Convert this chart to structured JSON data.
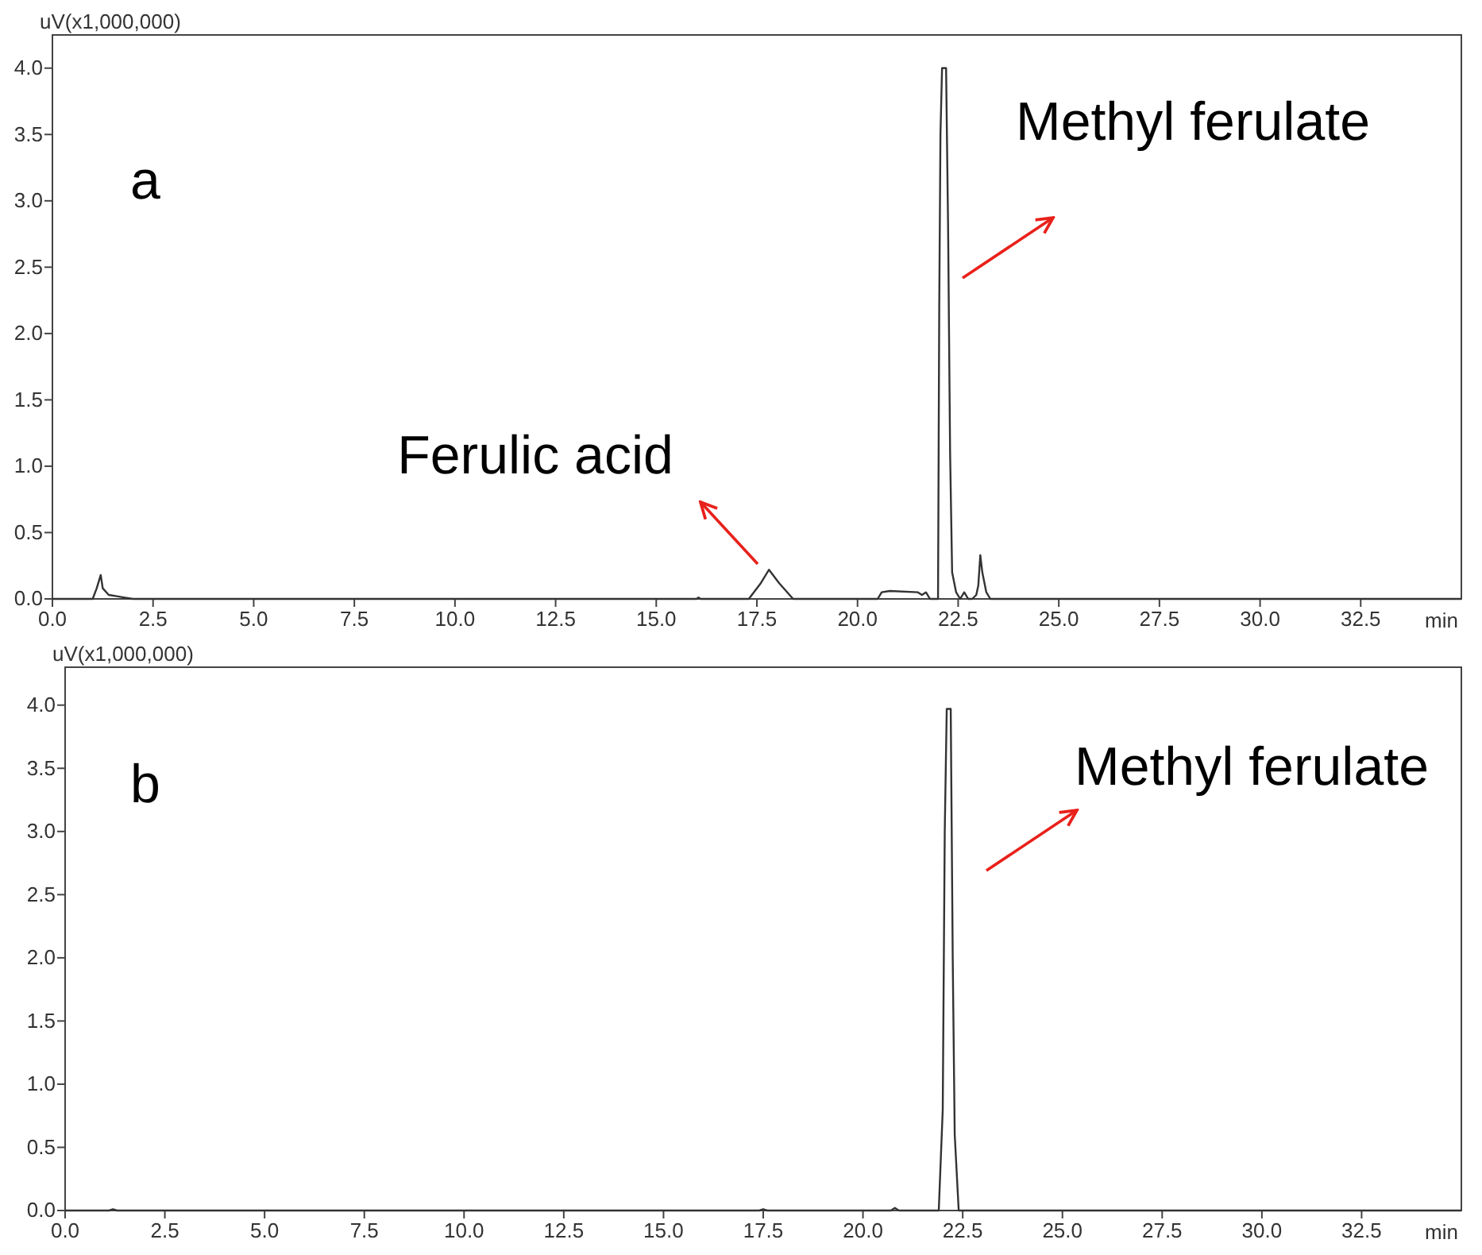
{
  "chart_data": [
    {
      "type": "line",
      "xlabel": "min",
      "ylabel": "uV(x1,000,000)",
      "xlim": [
        0,
        35
      ],
      "ylim": [
        0,
        4.25
      ],
      "xticks": [
        {
          "value": 0,
          "label": "0.0"
        },
        {
          "value": 2.5,
          "label": "2.5"
        },
        {
          "value": 5,
          "label": "5.0"
        },
        {
          "value": 7.5,
          "label": "7.5"
        },
        {
          "value": 10,
          "label": "10.0"
        },
        {
          "value": 12.5,
          "label": "12.5"
        },
        {
          "value": 15,
          "label": "15.0"
        },
        {
          "value": 17.5,
          "label": "17.5"
        },
        {
          "value": 20,
          "label": "20.0"
        },
        {
          "value": 22.5,
          "label": "22.5"
        },
        {
          "value": 25,
          "label": "25.0"
        },
        {
          "value": 27.5,
          "label": "27.5"
        },
        {
          "value": 30,
          "label": "30.0"
        },
        {
          "value": 32.5,
          "label": "32.5"
        }
      ],
      "yticks": [
        {
          "value": 0,
          "label": "0.0"
        },
        {
          "value": 0.5,
          "label": "0.5"
        },
        {
          "value": 1,
          "label": "1.0"
        },
        {
          "value": 1.5,
          "label": "1.5"
        },
        {
          "value": 2,
          "label": "2.0"
        },
        {
          "value": 2.5,
          "label": "2.5"
        },
        {
          "value": 3,
          "label": "3.0"
        },
        {
          "value": 3.5,
          "label": "3.5"
        },
        {
          "value": 4,
          "label": "4.0"
        }
      ],
      "series": [
        {
          "color": "#333333",
          "x": [
            0,
            1.0,
            1.1,
            1.2,
            1.25,
            1.4,
            1.6,
            1.8,
            2.0,
            16.0,
            16.05,
            16.1,
            17.3,
            17.6,
            17.8,
            18.05,
            18.4,
            20.5,
            20.6,
            20.8,
            21.5,
            21.6,
            21.7,
            21.8,
            22.0,
            22.03,
            22.06,
            22.1,
            22.2,
            22.25,
            22.3,
            22.35,
            22.45,
            22.55,
            22.65,
            22.75,
            22.85,
            22.95,
            23.0,
            23.05,
            23.1,
            23.2,
            23.3,
            35
          ],
          "values": [
            0,
            0,
            0.08,
            0.18,
            0.08,
            0.03,
            0.02,
            0.01,
            0,
            0,
            0.01,
            0,
            0,
            0.12,
            0.22,
            0.12,
            0,
            0,
            0.05,
            0.06,
            0.05,
            0.03,
            0.05,
            0,
            0,
            2.2,
            3.5,
            4.0,
            4.0,
            2.8,
            1.1,
            0.2,
            0.05,
            0,
            0.05,
            0,
            0,
            0.03,
            0.1,
            0.33,
            0.2,
            0.05,
            0,
            0
          ]
        }
      ],
      "annotations": [
        "a",
        "Ferulic acid",
        "Methyl ferulate"
      ]
    },
    {
      "type": "line",
      "xlabel": "min",
      "ylabel": "uV(x1,000,000)",
      "xlim": [
        0,
        35
      ],
      "ylim": [
        0,
        4.3
      ],
      "xticks": [
        {
          "value": 0,
          "label": "0.0"
        },
        {
          "value": 2.5,
          "label": "2.5"
        },
        {
          "value": 5,
          "label": "5.0"
        },
        {
          "value": 7.5,
          "label": "7.5"
        },
        {
          "value": 10,
          "label": "10.0"
        },
        {
          "value": 12.5,
          "label": "12.5"
        },
        {
          "value": 15,
          "label": "15.0"
        },
        {
          "value": 17.5,
          "label": "17.5"
        },
        {
          "value": 20,
          "label": "20.0"
        },
        {
          "value": 22.5,
          "label": "22.5"
        },
        {
          "value": 25,
          "label": "25.0"
        },
        {
          "value": 27.5,
          "label": "27.5"
        },
        {
          "value": 30,
          "label": "30.0"
        },
        {
          "value": 32.5,
          "label": "32.5"
        }
      ],
      "yticks": [
        {
          "value": 0,
          "label": "0.0"
        },
        {
          "value": 0.5,
          "label": "0.5"
        },
        {
          "value": 1,
          "label": "1.0"
        },
        {
          "value": 1.5,
          "label": "1.5"
        },
        {
          "value": 2,
          "label": "2.0"
        },
        {
          "value": 2.5,
          "label": "2.5"
        },
        {
          "value": 3,
          "label": "3.0"
        },
        {
          "value": 3.5,
          "label": "3.5"
        },
        {
          "value": 4,
          "label": "4.0"
        }
      ],
      "series": [
        {
          "color": "#333333",
          "x": [
            0,
            1.1,
            1.2,
            1.3,
            17.4,
            17.5,
            17.6,
            20.7,
            20.8,
            20.9,
            21.9,
            22.0,
            22.05,
            22.1,
            22.2,
            22.25,
            22.3,
            22.4,
            35
          ],
          "values": [
            0,
            0,
            0.01,
            0,
            0,
            0.01,
            0,
            0,
            0.02,
            0,
            0,
            0.8,
            3.0,
            3.97,
            3.97,
            2.0,
            0.6,
            0,
            0
          ]
        }
      ],
      "annotations": [
        "b",
        "Methyl ferulate"
      ]
    }
  ]
}
